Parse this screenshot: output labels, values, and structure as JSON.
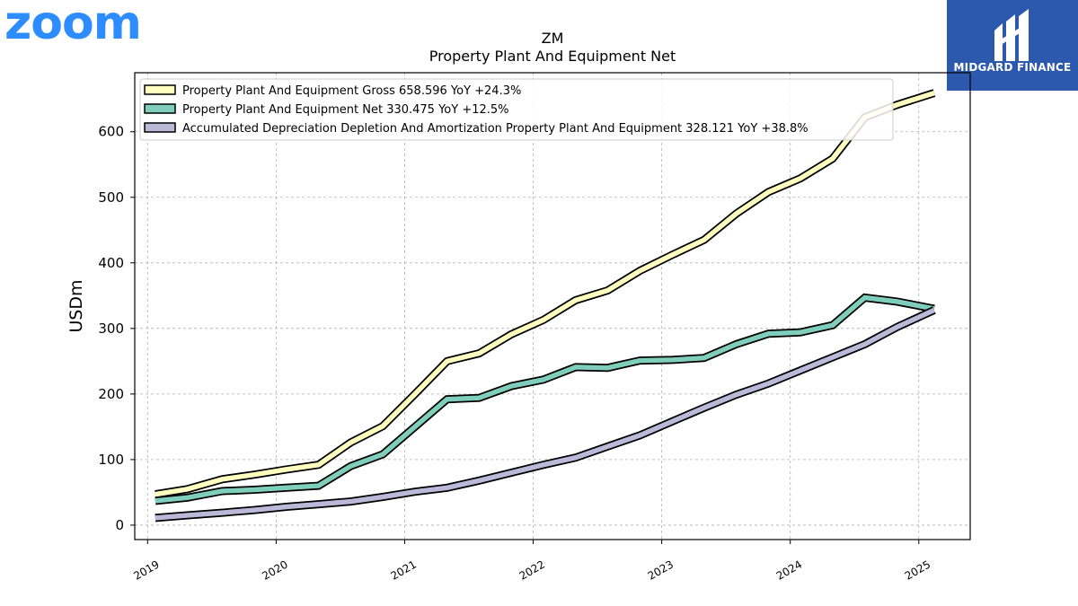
{
  "logo": {
    "text": "zoom",
    "color": "#2d8cff"
  },
  "brand": {
    "name": "MIDGARD FINANCE",
    "bg": "#2c59ad"
  },
  "chart_data": {
    "type": "line",
    "title": "ZM",
    "subtitle": "Property Plant And Equipment Net",
    "ylabel": "USDm",
    "xlabel": "",
    "xlim": [
      2018.9,
      2025.4
    ],
    "ylim": [
      -22,
      690
    ],
    "yticks": [
      0,
      100,
      200,
      300,
      400,
      500,
      600
    ],
    "xticks": [
      2019,
      2020,
      2021,
      2022,
      2023,
      2024,
      2025
    ],
    "grid": true,
    "legend_position": "top-left",
    "series": [
      {
        "name": "Property Plant And Equipment Gross  658.596 YoY +24.3%",
        "color": "#ffffc0",
        "x": [
          2019.06,
          2019.31,
          2019.58,
          2019.83,
          2020.08,
          2020.33,
          2020.58,
          2020.83,
          2021.08,
          2021.33,
          2021.58,
          2021.83,
          2022.08,
          2022.33,
          2022.58,
          2022.83,
          2023.08,
          2023.33,
          2023.58,
          2023.83,
          2024.08,
          2024.33,
          2024.58,
          2024.83,
          2025.12
        ],
        "values": [
          47,
          55,
          70,
          77,
          85,
          92,
          126,
          151,
          200,
          250,
          262,
          291,
          313,
          343,
          358,
          388,
          412,
          435,
          475,
          508,
          529,
          559,
          622,
          641,
          659
        ]
      },
      {
        "name": "Property Plant And Equipment Net  330.475 YoY +12.5%",
        "color": "#7fcdbb",
        "x": [
          2019.06,
          2019.31,
          2019.58,
          2019.83,
          2020.08,
          2020.33,
          2020.58,
          2020.83,
          2021.08,
          2021.33,
          2021.58,
          2021.83,
          2022.08,
          2022.33,
          2022.58,
          2022.83,
          2023.08,
          2023.33,
          2023.58,
          2023.83,
          2024.08,
          2024.33,
          2024.58,
          2024.83,
          2025.12
        ],
        "values": [
          37,
          42,
          52,
          54,
          57,
          60,
          90,
          108,
          150,
          192,
          194,
          212,
          222,
          241,
          240,
          251,
          252,
          255,
          276,
          292,
          294,
          305,
          347,
          341,
          330
        ]
      },
      {
        "name": "Accumulated Depreciation Depletion And Amortization Property Plant And Equipment  328.121 YoY +38.8%",
        "color": "#bcb8d8",
        "x": [
          2019.06,
          2019.31,
          2019.58,
          2019.83,
          2020.08,
          2020.33,
          2020.58,
          2020.83,
          2021.08,
          2021.33,
          2021.58,
          2021.83,
          2022.08,
          2022.33,
          2022.58,
          2022.83,
          2023.08,
          2023.33,
          2023.58,
          2023.83,
          2024.08,
          2024.33,
          2024.58,
          2024.83,
          2025.12
        ],
        "values": [
          11,
          15,
          19,
          23,
          28,
          32,
          36,
          43,
          51,
          57,
          68,
          80,
          92,
          103,
          120,
          137,
          158,
          179,
          199,
          216,
          236,
          256,
          276,
          302,
          328
        ]
      }
    ]
  }
}
